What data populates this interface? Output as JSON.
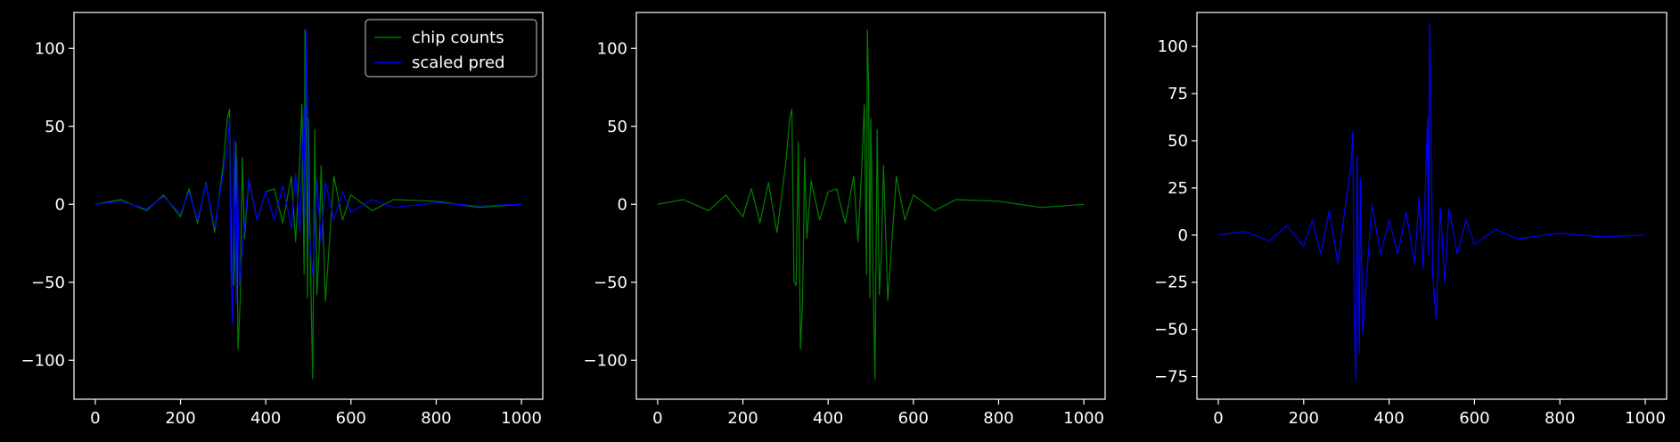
{
  "chart_data": [
    {
      "type": "line",
      "title": "",
      "xlabel": "",
      "ylabel": "",
      "xlim": [
        -50,
        1050
      ],
      "ylim": [
        -125,
        123
      ],
      "xticks": [
        0,
        200,
        400,
        600,
        800,
        1000
      ],
      "yticks": [
        -100,
        -50,
        0,
        50,
        100
      ],
      "legend": {
        "placement": "top-right",
        "entries": [
          "chip counts",
          "scaled pred"
        ]
      },
      "grid": false,
      "series": [
        {
          "name": "chip counts",
          "color": "#008000",
          "x": [
            0,
            60,
            120,
            160,
            200,
            220,
            240,
            260,
            280,
            300,
            310,
            315,
            320,
            325,
            330,
            335,
            340,
            345,
            350,
            360,
            380,
            400,
            420,
            440,
            460,
            470,
            480,
            485,
            490,
            492,
            495,
            498,
            500,
            505,
            510,
            515,
            520,
            525,
            530,
            540,
            560,
            580,
            600,
            650,
            700,
            800,
            900,
            1000
          ],
          "y": [
            0,
            3,
            -4,
            6,
            -8,
            10,
            -12,
            14,
            -18,
            25,
            55,
            61,
            -50,
            -52,
            40,
            -93,
            -62,
            30,
            -22,
            15,
            -10,
            8,
            10,
            -12,
            18,
            -24,
            30,
            64,
            -45,
            112,
            75,
            -60,
            55,
            -40,
            -112,
            48,
            -58,
            -30,
            25,
            -62,
            18,
            -10,
            6,
            -4,
            3,
            2,
            -2,
            0
          ]
        },
        {
          "name": "scaled pred",
          "color": "#0000ff",
          "x": [
            0,
            60,
            120,
            160,
            200,
            220,
            240,
            260,
            280,
            300,
            310,
            315,
            318,
            322,
            325,
            330,
            333,
            338,
            345,
            360,
            380,
            400,
            420,
            440,
            460,
            470,
            480,
            485,
            490,
            492,
            495,
            498,
            502,
            510,
            520,
            530,
            540,
            560,
            580,
            600,
            650,
            700,
            800,
            900,
            1000
          ],
          "y": [
            0,
            2,
            -3,
            5,
            -6,
            8,
            -10,
            13,
            -15,
            20,
            35,
            55,
            -40,
            -77,
            42,
            -63,
            30,
            -52,
            -30,
            16,
            -10,
            8,
            -10,
            12,
            -15,
            20,
            -18,
            25,
            62,
            -10,
            112,
            64,
            -20,
            -45,
            15,
            -25,
            14,
            -10,
            8,
            -5,
            3,
            -2,
            1,
            -1,
            0
          ]
        }
      ]
    },
    {
      "type": "line",
      "title": "",
      "xlabel": "",
      "ylabel": "",
      "xlim": [
        -50,
        1050
      ],
      "ylim": [
        -125,
        123
      ],
      "xticks": [
        0,
        200,
        400,
        600,
        800,
        1000
      ],
      "yticks": [
        -100,
        -50,
        0,
        50,
        100
      ],
      "grid": false,
      "series": [
        {
          "color": "#008000",
          "x": [
            0,
            60,
            120,
            160,
            200,
            220,
            240,
            260,
            280,
            300,
            310,
            315,
            320,
            325,
            330,
            335,
            340,
            345,
            350,
            360,
            380,
            400,
            420,
            440,
            460,
            470,
            480,
            485,
            490,
            492,
            495,
            498,
            500,
            505,
            510,
            515,
            520,
            525,
            530,
            540,
            560,
            580,
            600,
            650,
            700,
            800,
            900,
            1000
          ],
          "y": [
            0,
            3,
            -4,
            6,
            -8,
            10,
            -12,
            14,
            -18,
            25,
            55,
            61,
            -50,
            -52,
            40,
            -93,
            -62,
            30,
            -22,
            15,
            -10,
            8,
            10,
            -12,
            18,
            -24,
            30,
            64,
            -45,
            112,
            75,
            -60,
            55,
            -40,
            -112,
            48,
            -58,
            -30,
            25,
            -62,
            18,
            -10,
            6,
            -4,
            3,
            2,
            -2,
            0
          ]
        }
      ]
    },
    {
      "type": "line",
      "title": "",
      "xlabel": "",
      "ylabel": "",
      "xlim": [
        -50,
        1050
      ],
      "ylim": [
        -87,
        118
      ],
      "xticks": [
        0,
        200,
        400,
        600,
        800,
        1000
      ],
      "yticks": [
        -75,
        -50,
        -25,
        0,
        25,
        50,
        75,
        100
      ],
      "grid": false,
      "series": [
        {
          "color": "#0000ff",
          "x": [
            0,
            60,
            120,
            160,
            200,
            220,
            240,
            260,
            280,
            300,
            310,
            315,
            318,
            322,
            325,
            330,
            333,
            338,
            345,
            360,
            380,
            400,
            420,
            440,
            460,
            470,
            480,
            485,
            490,
            492,
            495,
            498,
            502,
            510,
            520,
            530,
            540,
            560,
            580,
            600,
            650,
            700,
            800,
            900,
            1000
          ],
          "y": [
            0,
            2,
            -3,
            5,
            -6,
            8,
            -10,
            13,
            -15,
            20,
            35,
            55,
            -40,
            -77,
            42,
            -63,
            30,
            -52,
            -30,
            16,
            -10,
            8,
            -10,
            12,
            -15,
            20,
            -18,
            25,
            62,
            -10,
            112,
            64,
            -20,
            -45,
            15,
            -25,
            14,
            -10,
            8,
            -5,
            3,
            -2,
            1,
            -1,
            0
          ]
        }
      ]
    }
  ]
}
